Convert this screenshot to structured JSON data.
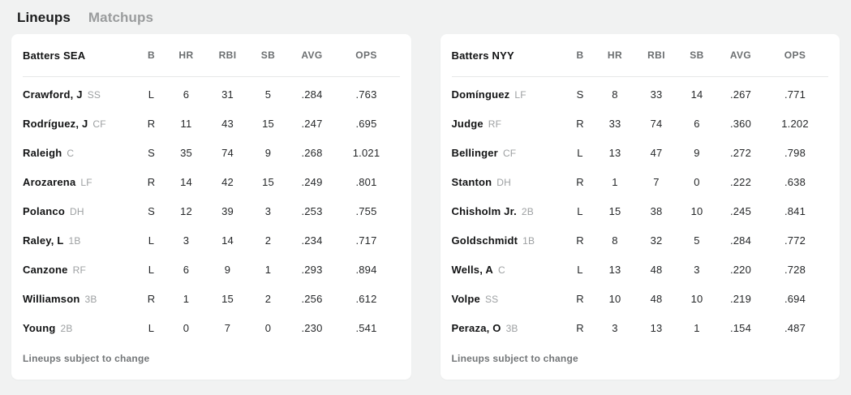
{
  "tabs": [
    {
      "label": "Lineups",
      "active": true
    },
    {
      "label": "Matchups",
      "active": false
    }
  ],
  "colors": {
    "page_bg": "#f1f2f2",
    "card_bg": "#ffffff",
    "active_tab_text": "#1a1b1c",
    "inactive_tab_text": "#9a9c9d",
    "header_text": "#6b6e70",
    "position_text": "#9da0a2",
    "divider": "#e7e8e8"
  },
  "tables": [
    {
      "title": "Batters SEA",
      "columns": [
        "B",
        "HR",
        "RBI",
        "SB",
        "AVG",
        "OPS"
      ],
      "footer": "Lineups subject to change",
      "rows": [
        {
          "name": "Crawford, J",
          "pos": "SS",
          "b": "L",
          "hr": "6",
          "rbi": "31",
          "sb": "5",
          "avg": ".284",
          "ops": ".763"
        },
        {
          "name": "Rodríguez, J",
          "pos": "CF",
          "b": "R",
          "hr": "11",
          "rbi": "43",
          "sb": "15",
          "avg": ".247",
          "ops": ".695"
        },
        {
          "name": "Raleigh",
          "pos": "C",
          "b": "S",
          "hr": "35",
          "rbi": "74",
          "sb": "9",
          "avg": ".268",
          "ops": "1.021"
        },
        {
          "name": "Arozarena",
          "pos": "LF",
          "b": "R",
          "hr": "14",
          "rbi": "42",
          "sb": "15",
          "avg": ".249",
          "ops": ".801"
        },
        {
          "name": "Polanco",
          "pos": "DH",
          "b": "S",
          "hr": "12",
          "rbi": "39",
          "sb": "3",
          "avg": ".253",
          "ops": ".755"
        },
        {
          "name": "Raley, L",
          "pos": "1B",
          "b": "L",
          "hr": "3",
          "rbi": "14",
          "sb": "2",
          "avg": ".234",
          "ops": ".717"
        },
        {
          "name": "Canzone",
          "pos": "RF",
          "b": "L",
          "hr": "6",
          "rbi": "9",
          "sb": "1",
          "avg": ".293",
          "ops": ".894"
        },
        {
          "name": "Williamson",
          "pos": "3B",
          "b": "R",
          "hr": "1",
          "rbi": "15",
          "sb": "2",
          "avg": ".256",
          "ops": ".612"
        },
        {
          "name": "Young",
          "pos": "2B",
          "b": "L",
          "hr": "0",
          "rbi": "7",
          "sb": "0",
          "avg": ".230",
          "ops": ".541"
        }
      ]
    },
    {
      "title": "Batters NYY",
      "columns": [
        "B",
        "HR",
        "RBI",
        "SB",
        "AVG",
        "OPS"
      ],
      "footer": "Lineups subject to change",
      "rows": [
        {
          "name": "Domínguez",
          "pos": "LF",
          "b": "S",
          "hr": "8",
          "rbi": "33",
          "sb": "14",
          "avg": ".267",
          "ops": ".771"
        },
        {
          "name": "Judge",
          "pos": "RF",
          "b": "R",
          "hr": "33",
          "rbi": "74",
          "sb": "6",
          "avg": ".360",
          "ops": "1.202"
        },
        {
          "name": "Bellinger",
          "pos": "CF",
          "b": "L",
          "hr": "13",
          "rbi": "47",
          "sb": "9",
          "avg": ".272",
          "ops": ".798"
        },
        {
          "name": "Stanton",
          "pos": "DH",
          "b": "R",
          "hr": "1",
          "rbi": "7",
          "sb": "0",
          "avg": ".222",
          "ops": ".638"
        },
        {
          "name": "Chisholm Jr.",
          "pos": "2B",
          "b": "L",
          "hr": "15",
          "rbi": "38",
          "sb": "10",
          "avg": ".245",
          "ops": ".841"
        },
        {
          "name": "Goldschmidt",
          "pos": "1B",
          "b": "R",
          "hr": "8",
          "rbi": "32",
          "sb": "5",
          "avg": ".284",
          "ops": ".772"
        },
        {
          "name": "Wells, A",
          "pos": "C",
          "b": "L",
          "hr": "13",
          "rbi": "48",
          "sb": "3",
          "avg": ".220",
          "ops": ".728"
        },
        {
          "name": "Volpe",
          "pos": "SS",
          "b": "R",
          "hr": "10",
          "rbi": "48",
          "sb": "10",
          "avg": ".219",
          "ops": ".694"
        },
        {
          "name": "Peraza, O",
          "pos": "3B",
          "b": "R",
          "hr": "3",
          "rbi": "13",
          "sb": "1",
          "avg": ".154",
          "ops": ".487"
        }
      ]
    }
  ]
}
